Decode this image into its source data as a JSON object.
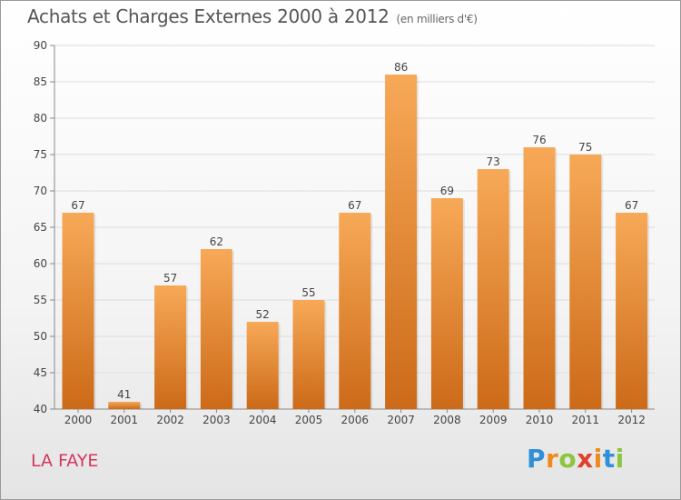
{
  "header": {
    "title": "Achats et Charges Externes 2000 à 2012",
    "unit_note": "(en milliers d'€)"
  },
  "footer": {
    "town": "LA FAYE",
    "logo_text": "Proxiti"
  },
  "colors": {
    "bar_top": "#f7a957",
    "bar_bottom": "#cc6a18",
    "town_text": "#d2385d",
    "grid": "#dddddd"
  },
  "chart_data": {
    "type": "bar",
    "title": "Achats et Charges Externes 2000 à 2012",
    "subtitle": "(en milliers d'€)",
    "xlabel": "",
    "ylabel": "",
    "categories": [
      "2000",
      "2001",
      "2002",
      "2003",
      "2004",
      "2005",
      "2006",
      "2007",
      "2008",
      "2009",
      "2010",
      "2011",
      "2012"
    ],
    "values": [
      67,
      41,
      57,
      62,
      52,
      55,
      67,
      86,
      69,
      73,
      76,
      75,
      67
    ],
    "ylim": [
      40,
      90
    ],
    "yticks": [
      40,
      45,
      50,
      55,
      60,
      65,
      70,
      75,
      80,
      85,
      90
    ],
    "grid": true,
    "data_labels": true
  }
}
